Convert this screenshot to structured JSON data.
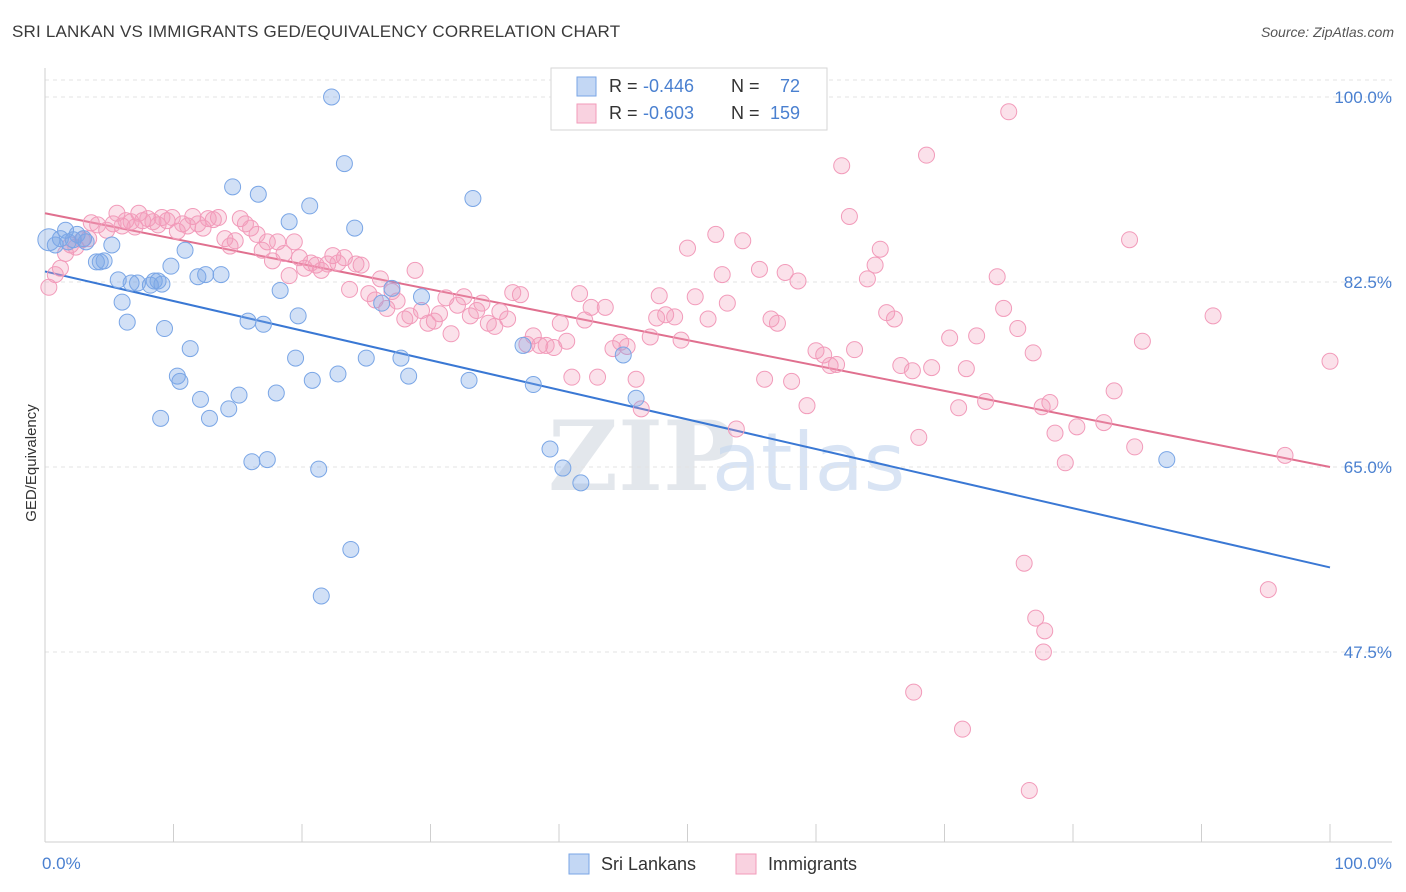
{
  "title": "SRI LANKAN VS IMMIGRANTS GED/EQUIVALENCY CORRELATION CHART",
  "source": "Source: ZipAtlas.com",
  "watermark": {
    "zip": "ZIP",
    "atlas": "atlas"
  },
  "colors": {
    "sri": "#7aa6e6",
    "sri_line": "#3a78d4",
    "imm": "#f29bba",
    "imm_line": "#e0708f",
    "axis_label": "#4a80d0"
  },
  "chart_data": {
    "type": "scatter",
    "xlabel": "",
    "ylabel": "GED/Equivalency",
    "xlim": [
      0,
      100
    ],
    "ylim": [
      30,
      100
    ],
    "x_tick_labels": [
      "0.0%",
      "100.0%"
    ],
    "y_ticks": [
      {
        "value": 100.0,
        "label": "100.0%"
      },
      {
        "value": 82.5,
        "label": "82.5%"
      },
      {
        "value": 65.0,
        "label": "65.0%"
      },
      {
        "value": 47.5,
        "label": "47.5%"
      }
    ],
    "legend": {
      "position": "top-center",
      "entries": [
        {
          "series": "sri",
          "r_label": "R =",
          "r_value": "-0.446",
          "n_label": "N =",
          "n_value": "72"
        },
        {
          "series": "imm",
          "r_label": "R =",
          "r_value": "-0.603",
          "n_label": "N =",
          "n_value": "159"
        }
      ]
    },
    "bottom_legend": [
      {
        "series": "sri",
        "label": "Sri Lankans"
      },
      {
        "series": "imm",
        "label": "Immigrants"
      }
    ],
    "series": [
      {
        "name": "Sri Lankans",
        "key": "sri",
        "trend": {
          "x": [
            0,
            100
          ],
          "y": [
            83.5,
            55.5
          ]
        },
        "points": [
          [
            0.3,
            86.5
          ],
          [
            0.8,
            86.0
          ],
          [
            1.2,
            86.6
          ],
          [
            1.6,
            87.4
          ],
          [
            1.8,
            86.3
          ],
          [
            2.2,
            86.5
          ],
          [
            2.5,
            87.0
          ],
          [
            3.0,
            86.6
          ],
          [
            3.2,
            86.3
          ],
          [
            4.0,
            84.4
          ],
          [
            4.3,
            84.4
          ],
          [
            4.6,
            84.5
          ],
          [
            5.2,
            86.0
          ],
          [
            5.7,
            82.7
          ],
          [
            6.0,
            80.6
          ],
          [
            6.4,
            78.7
          ],
          [
            6.7,
            82.4
          ],
          [
            7.2,
            82.4
          ],
          [
            8.2,
            82.2
          ],
          [
            8.5,
            82.6
          ],
          [
            8.8,
            82.6
          ],
          [
            9.1,
            82.3
          ],
          [
            9.0,
            69.6
          ],
          [
            9.3,
            78.1
          ],
          [
            9.8,
            84.0
          ],
          [
            10.3,
            73.6
          ],
          [
            10.5,
            73.1
          ],
          [
            10.9,
            85.5
          ],
          [
            11.3,
            76.2
          ],
          [
            11.9,
            83.0
          ],
          [
            12.1,
            71.4
          ],
          [
            12.5,
            83.2
          ],
          [
            12.8,
            69.6
          ],
          [
            13.7,
            83.2
          ],
          [
            14.3,
            70.5
          ],
          [
            14.6,
            91.5
          ],
          [
            15.1,
            71.8
          ],
          [
            15.8,
            78.8
          ],
          [
            16.1,
            65.5
          ],
          [
            16.6,
            90.8
          ],
          [
            17.0,
            78.5
          ],
          [
            17.3,
            65.7
          ],
          [
            18.0,
            72.0
          ],
          [
            18.3,
            81.7
          ],
          [
            19.0,
            88.2
          ],
          [
            19.5,
            75.3
          ],
          [
            19.7,
            79.3
          ],
          [
            20.6,
            89.7
          ],
          [
            20.8,
            73.2
          ],
          [
            21.3,
            64.8
          ],
          [
            21.5,
            52.8
          ],
          [
            22.3,
            100.0
          ],
          [
            22.8,
            73.8
          ],
          [
            23.3,
            93.7
          ],
          [
            23.8,
            57.2
          ],
          [
            24.1,
            87.6
          ],
          [
            25.0,
            75.3
          ],
          [
            26.2,
            80.5
          ],
          [
            27.0,
            81.9
          ],
          [
            27.7,
            75.3
          ],
          [
            28.3,
            73.6
          ],
          [
            29.3,
            81.1
          ],
          [
            33.0,
            73.2
          ],
          [
            33.3,
            90.4
          ],
          [
            37.2,
            76.5
          ],
          [
            38.0,
            72.8
          ],
          [
            39.3,
            66.7
          ],
          [
            40.3,
            64.9
          ],
          [
            41.7,
            63.5
          ],
          [
            45.0,
            75.6
          ],
          [
            46.0,
            71.5
          ],
          [
            87.3,
            65.7
          ]
        ]
      },
      {
        "name": "Immigrants",
        "key": "imm",
        "trend": {
          "x": [
            0,
            100
          ],
          "y": [
            89.0,
            65.0
          ]
        },
        "points": [
          [
            0.3,
            82.0
          ],
          [
            0.8,
            83.2
          ],
          [
            1.2,
            83.8
          ],
          [
            1.6,
            85.2
          ],
          [
            2.0,
            86.0
          ],
          [
            2.4,
            85.8
          ],
          [
            2.9,
            86.5
          ],
          [
            3.4,
            86.6
          ],
          [
            3.6,
            88.1
          ],
          [
            4.1,
            87.9
          ],
          [
            4.8,
            87.4
          ],
          [
            5.3,
            88.0
          ],
          [
            5.6,
            89.0
          ],
          [
            6.0,
            87.8
          ],
          [
            6.3,
            88.3
          ],
          [
            6.7,
            88.2
          ],
          [
            7.0,
            87.7
          ],
          [
            7.3,
            89.0
          ],
          [
            7.6,
            88.3
          ],
          [
            8.0,
            88.5
          ],
          [
            8.4,
            88.2
          ],
          [
            8.8,
            87.9
          ],
          [
            9.1,
            88.6
          ],
          [
            9.5,
            88.3
          ],
          [
            9.9,
            88.6
          ],
          [
            10.3,
            87.3
          ],
          [
            10.7,
            88.0
          ],
          [
            11.1,
            87.8
          ],
          [
            11.5,
            88.7
          ],
          [
            11.9,
            88.0
          ],
          [
            12.3,
            87.6
          ],
          [
            12.7,
            88.5
          ],
          [
            13.1,
            88.4
          ],
          [
            13.5,
            88.6
          ],
          [
            14.0,
            86.6
          ],
          [
            14.4,
            85.9
          ],
          [
            14.8,
            86.4
          ],
          [
            15.2,
            88.5
          ],
          [
            15.6,
            88.0
          ],
          [
            16.0,
            87.6
          ],
          [
            16.5,
            87.0
          ],
          [
            16.9,
            85.5
          ],
          [
            17.3,
            86.3
          ],
          [
            17.7,
            84.5
          ],
          [
            18.1,
            86.3
          ],
          [
            18.6,
            85.2
          ],
          [
            19.0,
            83.1
          ],
          [
            19.4,
            86.3
          ],
          [
            19.8,
            84.8
          ],
          [
            20.2,
            83.8
          ],
          [
            20.7,
            84.3
          ],
          [
            21.1,
            84.1
          ],
          [
            21.5,
            83.6
          ],
          [
            22.0,
            84.2
          ],
          [
            22.4,
            85.0
          ],
          [
            22.8,
            84.3
          ],
          [
            23.3,
            84.8
          ],
          [
            23.7,
            81.8
          ],
          [
            24.2,
            84.2
          ],
          [
            24.6,
            84.1
          ],
          [
            25.2,
            81.4
          ],
          [
            25.7,
            80.8
          ],
          [
            26.1,
            82.8
          ],
          [
            26.6,
            80.0
          ],
          [
            27.0,
            81.6
          ],
          [
            27.4,
            80.7
          ],
          [
            28.0,
            79.0
          ],
          [
            28.4,
            79.3
          ],
          [
            28.8,
            83.6
          ],
          [
            29.3,
            79.8
          ],
          [
            29.8,
            78.6
          ],
          [
            30.3,
            78.8
          ],
          [
            30.7,
            79.5
          ],
          [
            31.2,
            81.0
          ],
          [
            31.6,
            77.6
          ],
          [
            32.1,
            80.3
          ],
          [
            32.6,
            81.1
          ],
          [
            33.1,
            79.3
          ],
          [
            33.6,
            79.8
          ],
          [
            34.0,
            80.5
          ],
          [
            34.5,
            78.6
          ],
          [
            35.0,
            78.3
          ],
          [
            35.4,
            79.7
          ],
          [
            36.0,
            79.0
          ],
          [
            36.4,
            81.5
          ],
          [
            37.0,
            81.3
          ],
          [
            37.5,
            76.6
          ],
          [
            38.0,
            77.4
          ],
          [
            38.5,
            76.5
          ],
          [
            39.0,
            76.5
          ],
          [
            39.6,
            76.3
          ],
          [
            40.1,
            78.6
          ],
          [
            40.6,
            76.9
          ],
          [
            41.0,
            73.5
          ],
          [
            41.6,
            81.4
          ],
          [
            42.0,
            78.9
          ],
          [
            42.5,
            80.1
          ],
          [
            43.0,
            73.5
          ],
          [
            43.6,
            80.1
          ],
          [
            44.2,
            76.2
          ],
          [
            44.8,
            76.8
          ],
          [
            45.3,
            76.4
          ],
          [
            46.0,
            73.3
          ],
          [
            46.4,
            70.5
          ],
          [
            47.1,
            77.3
          ],
          [
            47.6,
            79.1
          ],
          [
            47.8,
            81.2
          ],
          [
            48.3,
            79.4
          ],
          [
            49.0,
            79.2
          ],
          [
            49.5,
            77.0
          ],
          [
            50.0,
            85.7
          ],
          [
            50.6,
            81.1
          ],
          [
            51.6,
            79.0
          ],
          [
            52.2,
            87.0
          ],
          [
            52.7,
            83.2
          ],
          [
            53.1,
            80.5
          ],
          [
            53.8,
            68.6
          ],
          [
            54.3,
            86.4
          ],
          [
            55.6,
            83.7
          ],
          [
            56.0,
            73.3
          ],
          [
            56.5,
            79.0
          ],
          [
            57.0,
            78.6
          ],
          [
            57.6,
            83.4
          ],
          [
            58.1,
            73.1
          ],
          [
            58.6,
            82.6
          ],
          [
            59.3,
            70.8
          ],
          [
            60.0,
            76.0
          ],
          [
            60.6,
            75.6
          ],
          [
            61.1,
            74.6
          ],
          [
            61.6,
            74.7
          ],
          [
            62.0,
            93.5
          ],
          [
            62.6,
            88.7
          ],
          [
            63.0,
            76.1
          ],
          [
            64.0,
            82.8
          ],
          [
            64.6,
            84.1
          ],
          [
            65.0,
            85.6
          ],
          [
            65.5,
            79.6
          ],
          [
            66.1,
            79.0
          ],
          [
            66.6,
            74.6
          ],
          [
            67.5,
            74.1
          ],
          [
            68.0,
            67.8
          ],
          [
            68.6,
            94.5
          ],
          [
            69.0,
            74.4
          ],
          [
            70.4,
            77.2
          ],
          [
            71.1,
            70.6
          ],
          [
            71.7,
            74.3
          ],
          [
            72.5,
            77.4
          ],
          [
            73.2,
            71.2
          ],
          [
            74.1,
            83.0
          ],
          [
            74.6,
            80.0
          ],
          [
            75.0,
            98.6
          ],
          [
            75.7,
            78.1
          ],
          [
            76.9,
            75.8
          ],
          [
            77.6,
            70.7
          ],
          [
            78.2,
            71.1
          ],
          [
            78.6,
            68.2
          ],
          [
            79.4,
            65.4
          ],
          [
            80.3,
            68.8
          ],
          [
            82.4,
            69.2
          ],
          [
            83.2,
            72.2
          ],
          [
            84.4,
            86.5
          ],
          [
            84.8,
            66.9
          ],
          [
            85.4,
            76.9
          ],
          [
            90.9,
            79.3
          ],
          [
            95.2,
            53.4
          ],
          [
            96.5,
            66.1
          ],
          [
            100.0,
            75.0
          ]
        ]
      }
    ],
    "extra_points": [
      {
        "series": "imm",
        "x": 76.2,
        "y": 55.9
      },
      {
        "series": "imm",
        "x": 77.1,
        "y": 50.7
      },
      {
        "series": "imm",
        "x": 77.8,
        "y": 49.5
      },
      {
        "series": "imm",
        "x": 67.6,
        "y": 43.7
      },
      {
        "series": "imm",
        "x": 71.4,
        "y": 40.2
      },
      {
        "series": "imm",
        "x": 76.6,
        "y": 34.4
      },
      {
        "series": "imm",
        "x": 77.7,
        "y": 47.5
      }
    ]
  }
}
